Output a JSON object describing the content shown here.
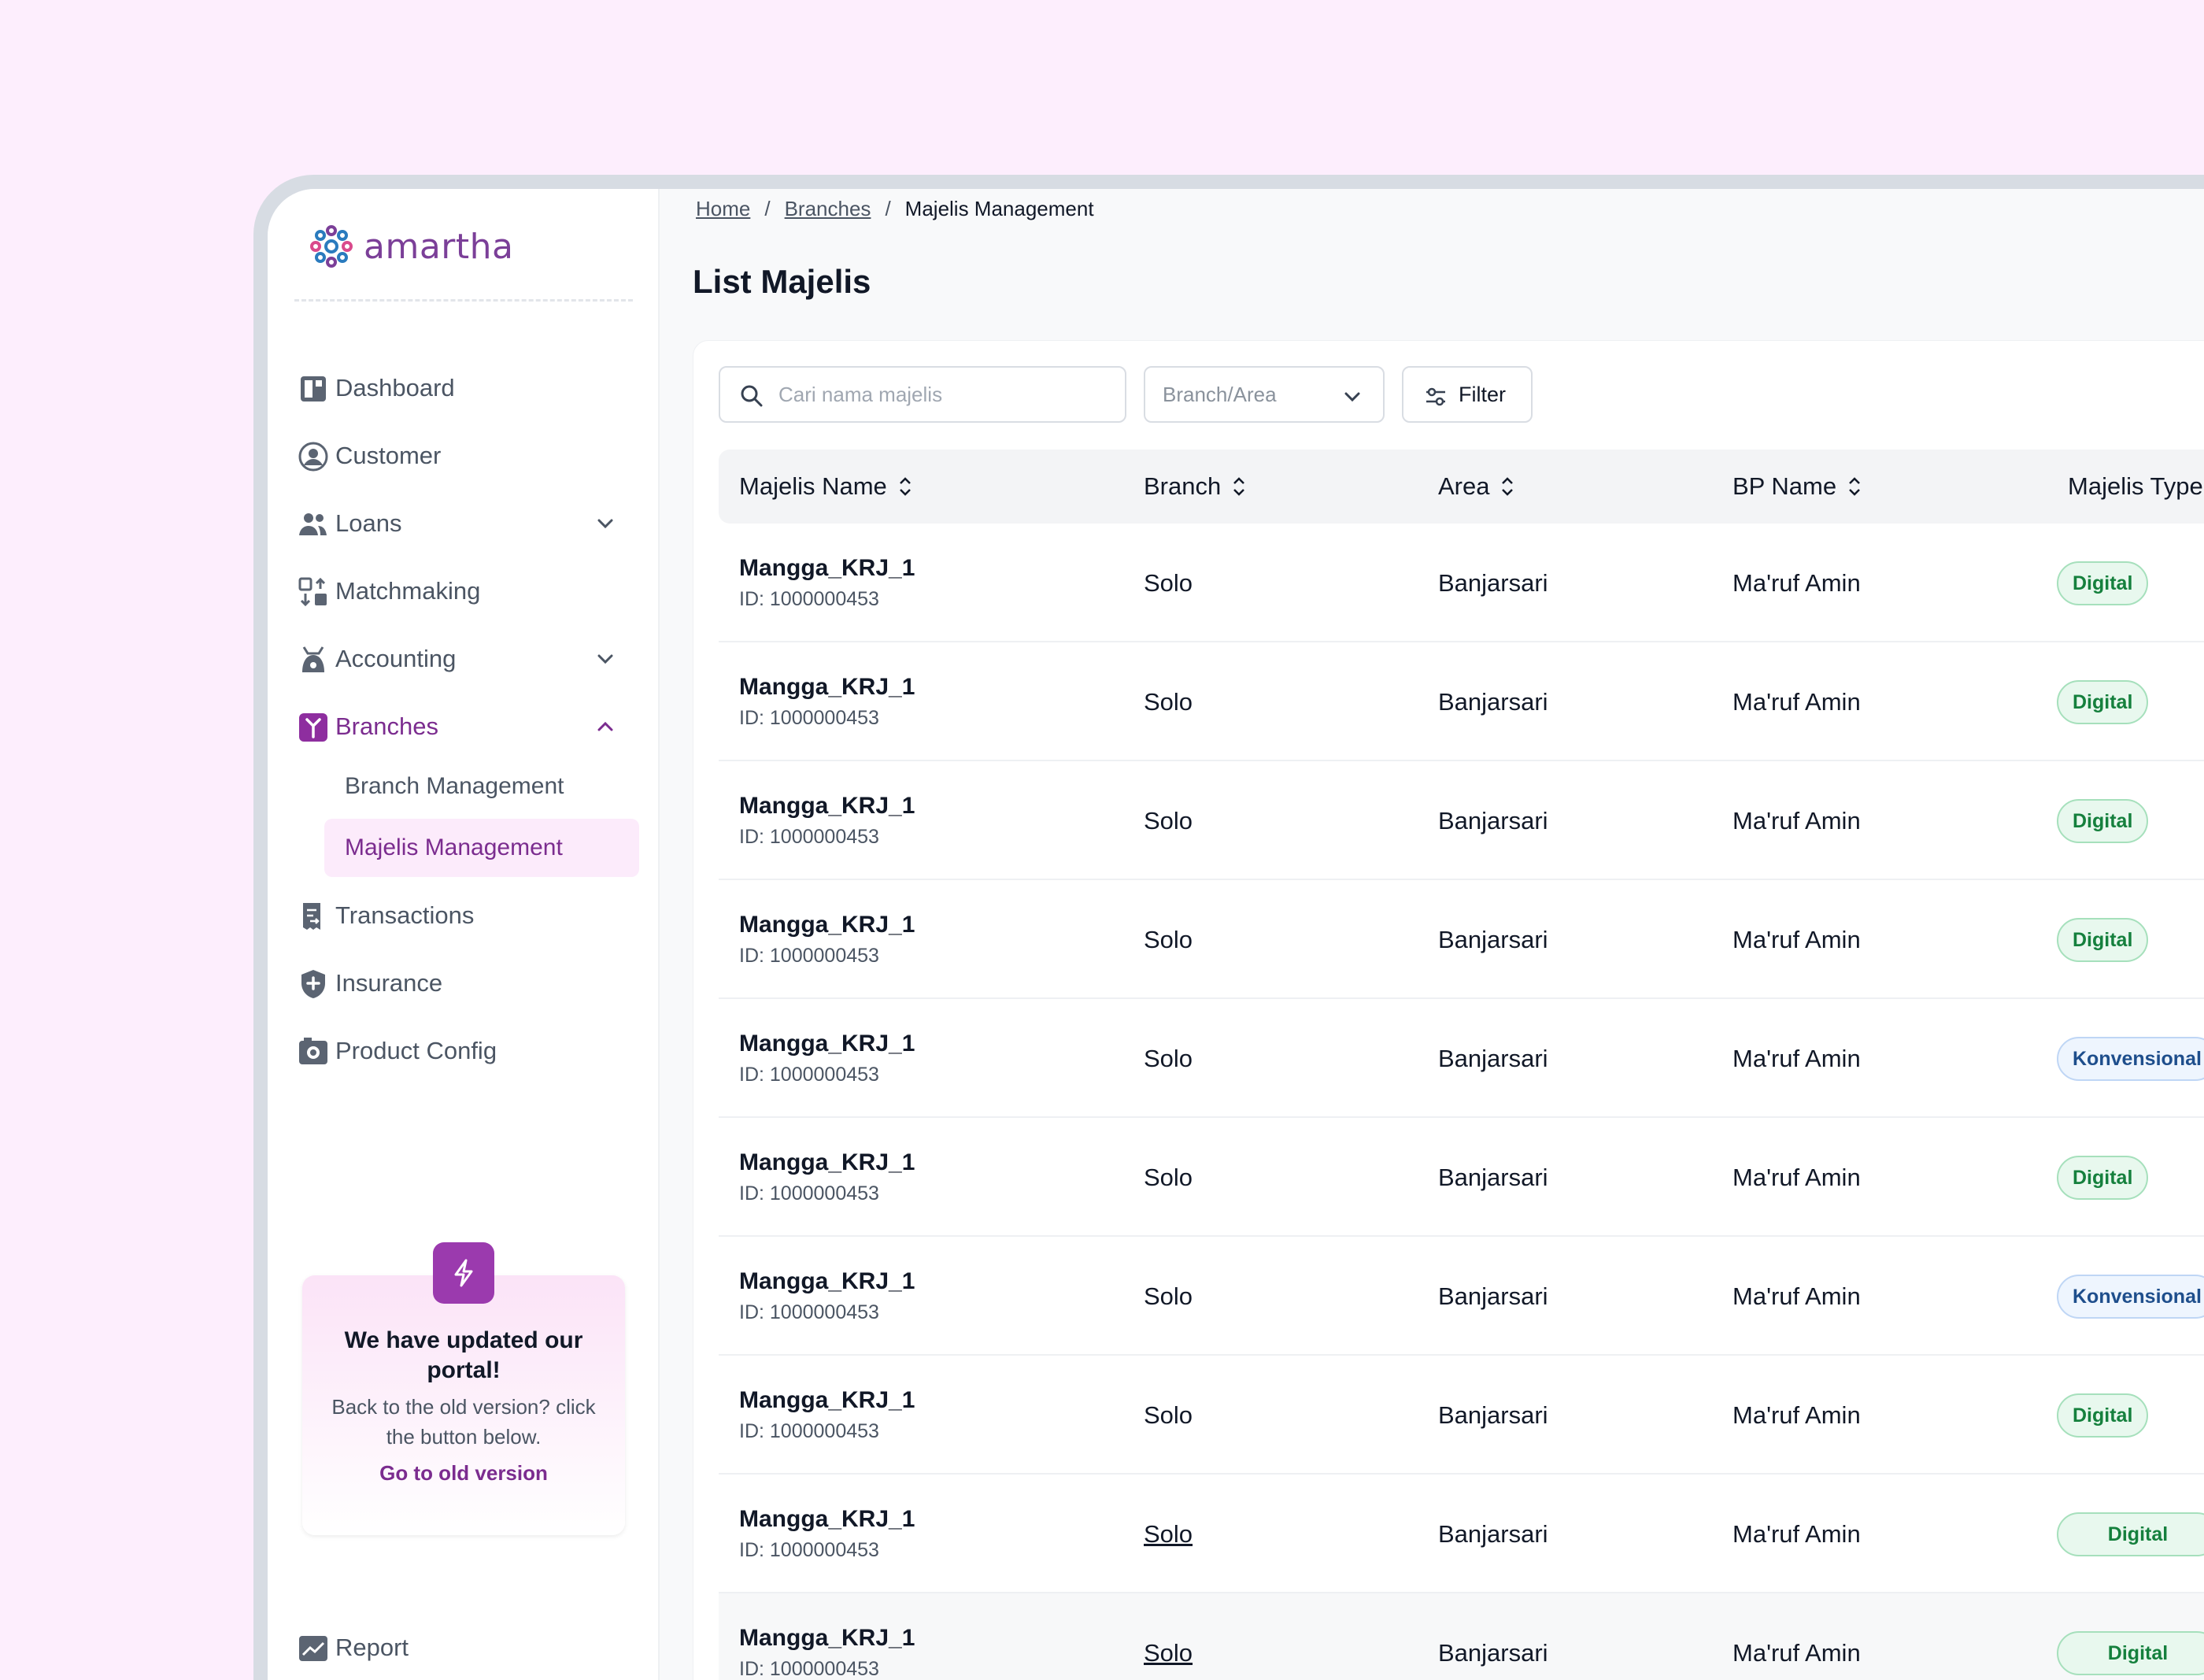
{
  "app": {
    "logo_text": "amartha"
  },
  "sidebar": {
    "items": [
      {
        "label": "Dashboard",
        "icon": "dashboard-icon"
      },
      {
        "label": "Customer",
        "icon": "customer-icon"
      },
      {
        "label": "Loans",
        "icon": "loans-icon",
        "expandable": true
      },
      {
        "label": "Matchmaking",
        "icon": "matchmaking-icon"
      },
      {
        "label": "Accounting",
        "icon": "accounting-icon",
        "expandable": true
      },
      {
        "label": "Branches",
        "icon": "branches-icon",
        "expanded": true,
        "active": true
      },
      {
        "label": "Transactions",
        "icon": "transactions-icon"
      },
      {
        "label": "Insurance",
        "icon": "insurance-icon"
      },
      {
        "label": "Product Config",
        "icon": "product-config-icon"
      }
    ],
    "sub_items": [
      {
        "label": "Branch Management"
      },
      {
        "label": "Majelis Management",
        "active": true
      }
    ],
    "promo": {
      "title": "We have updated our portal!",
      "body": "Back to the old version? click the button below.",
      "link": "Go to old version"
    },
    "report_label": "Report"
  },
  "breadcrumb": {
    "items": [
      "Home",
      "Branches",
      "Majelis Management"
    ],
    "separator": "/"
  },
  "page": {
    "title": "List Majelis"
  },
  "toolbar": {
    "search_placeholder": "Cari nama majelis",
    "branch_area_placeholder": "Branch/Area",
    "filter_label": "Filter"
  },
  "table": {
    "columns": [
      "Majelis Name",
      "Branch",
      "Area",
      "BP Name",
      "Majelis Type"
    ],
    "rows": [
      {
        "name": "Mangga_KRJ_1",
        "id": "ID: 1000000453",
        "branch": "Solo",
        "area": "Banjarsari",
        "bp": "Ma'ruf Amin",
        "type": "Digital"
      },
      {
        "name": "Mangga_KRJ_1",
        "id": "ID: 1000000453",
        "branch": "Solo",
        "area": "Banjarsari",
        "bp": "Ma'ruf Amin",
        "type": "Digital"
      },
      {
        "name": "Mangga_KRJ_1",
        "id": "ID: 1000000453",
        "branch": "Solo",
        "area": "Banjarsari",
        "bp": "Ma'ruf Amin",
        "type": "Digital"
      },
      {
        "name": "Mangga_KRJ_1",
        "id": "ID: 1000000453",
        "branch": "Solo",
        "area": "Banjarsari",
        "bp": "Ma'ruf Amin",
        "type": "Digital"
      },
      {
        "name": "Mangga_KRJ_1",
        "id": "ID: 1000000453",
        "branch": "Solo",
        "area": "Banjarsari",
        "bp": "Ma'ruf Amin",
        "type": "Konvensional"
      },
      {
        "name": "Mangga_KRJ_1",
        "id": "ID: 1000000453",
        "branch": "Solo",
        "area": "Banjarsari",
        "bp": "Ma'ruf Amin",
        "type": "Digital"
      },
      {
        "name": "Mangga_KRJ_1",
        "id": "ID: 1000000453",
        "branch": "Solo",
        "area": "Banjarsari",
        "bp": "Ma'ruf Amin",
        "type": "Konvensional"
      },
      {
        "name": "Mangga_KRJ_1",
        "id": "ID: 1000000453",
        "branch": "Solo",
        "area": "Banjarsari",
        "bp": "Ma'ruf Amin",
        "type": "Digital"
      },
      {
        "name": "Mangga_KRJ_1",
        "id": "ID: 1000000453",
        "branch": "Solo",
        "area": "Banjarsari",
        "bp": "Ma'ruf Amin",
        "type": "Digital"
      },
      {
        "name": "Mangga_KRJ_1",
        "id": "ID: 1000000453",
        "branch": "Solo",
        "area": "Banjarsari",
        "bp": "Ma'ruf Amin",
        "type": "Digital"
      }
    ]
  },
  "colors": {
    "accent": "#7B2C8F",
    "background": "#FDEEFD",
    "digital": "#15803D",
    "konvensional": "#1E4E8C"
  }
}
